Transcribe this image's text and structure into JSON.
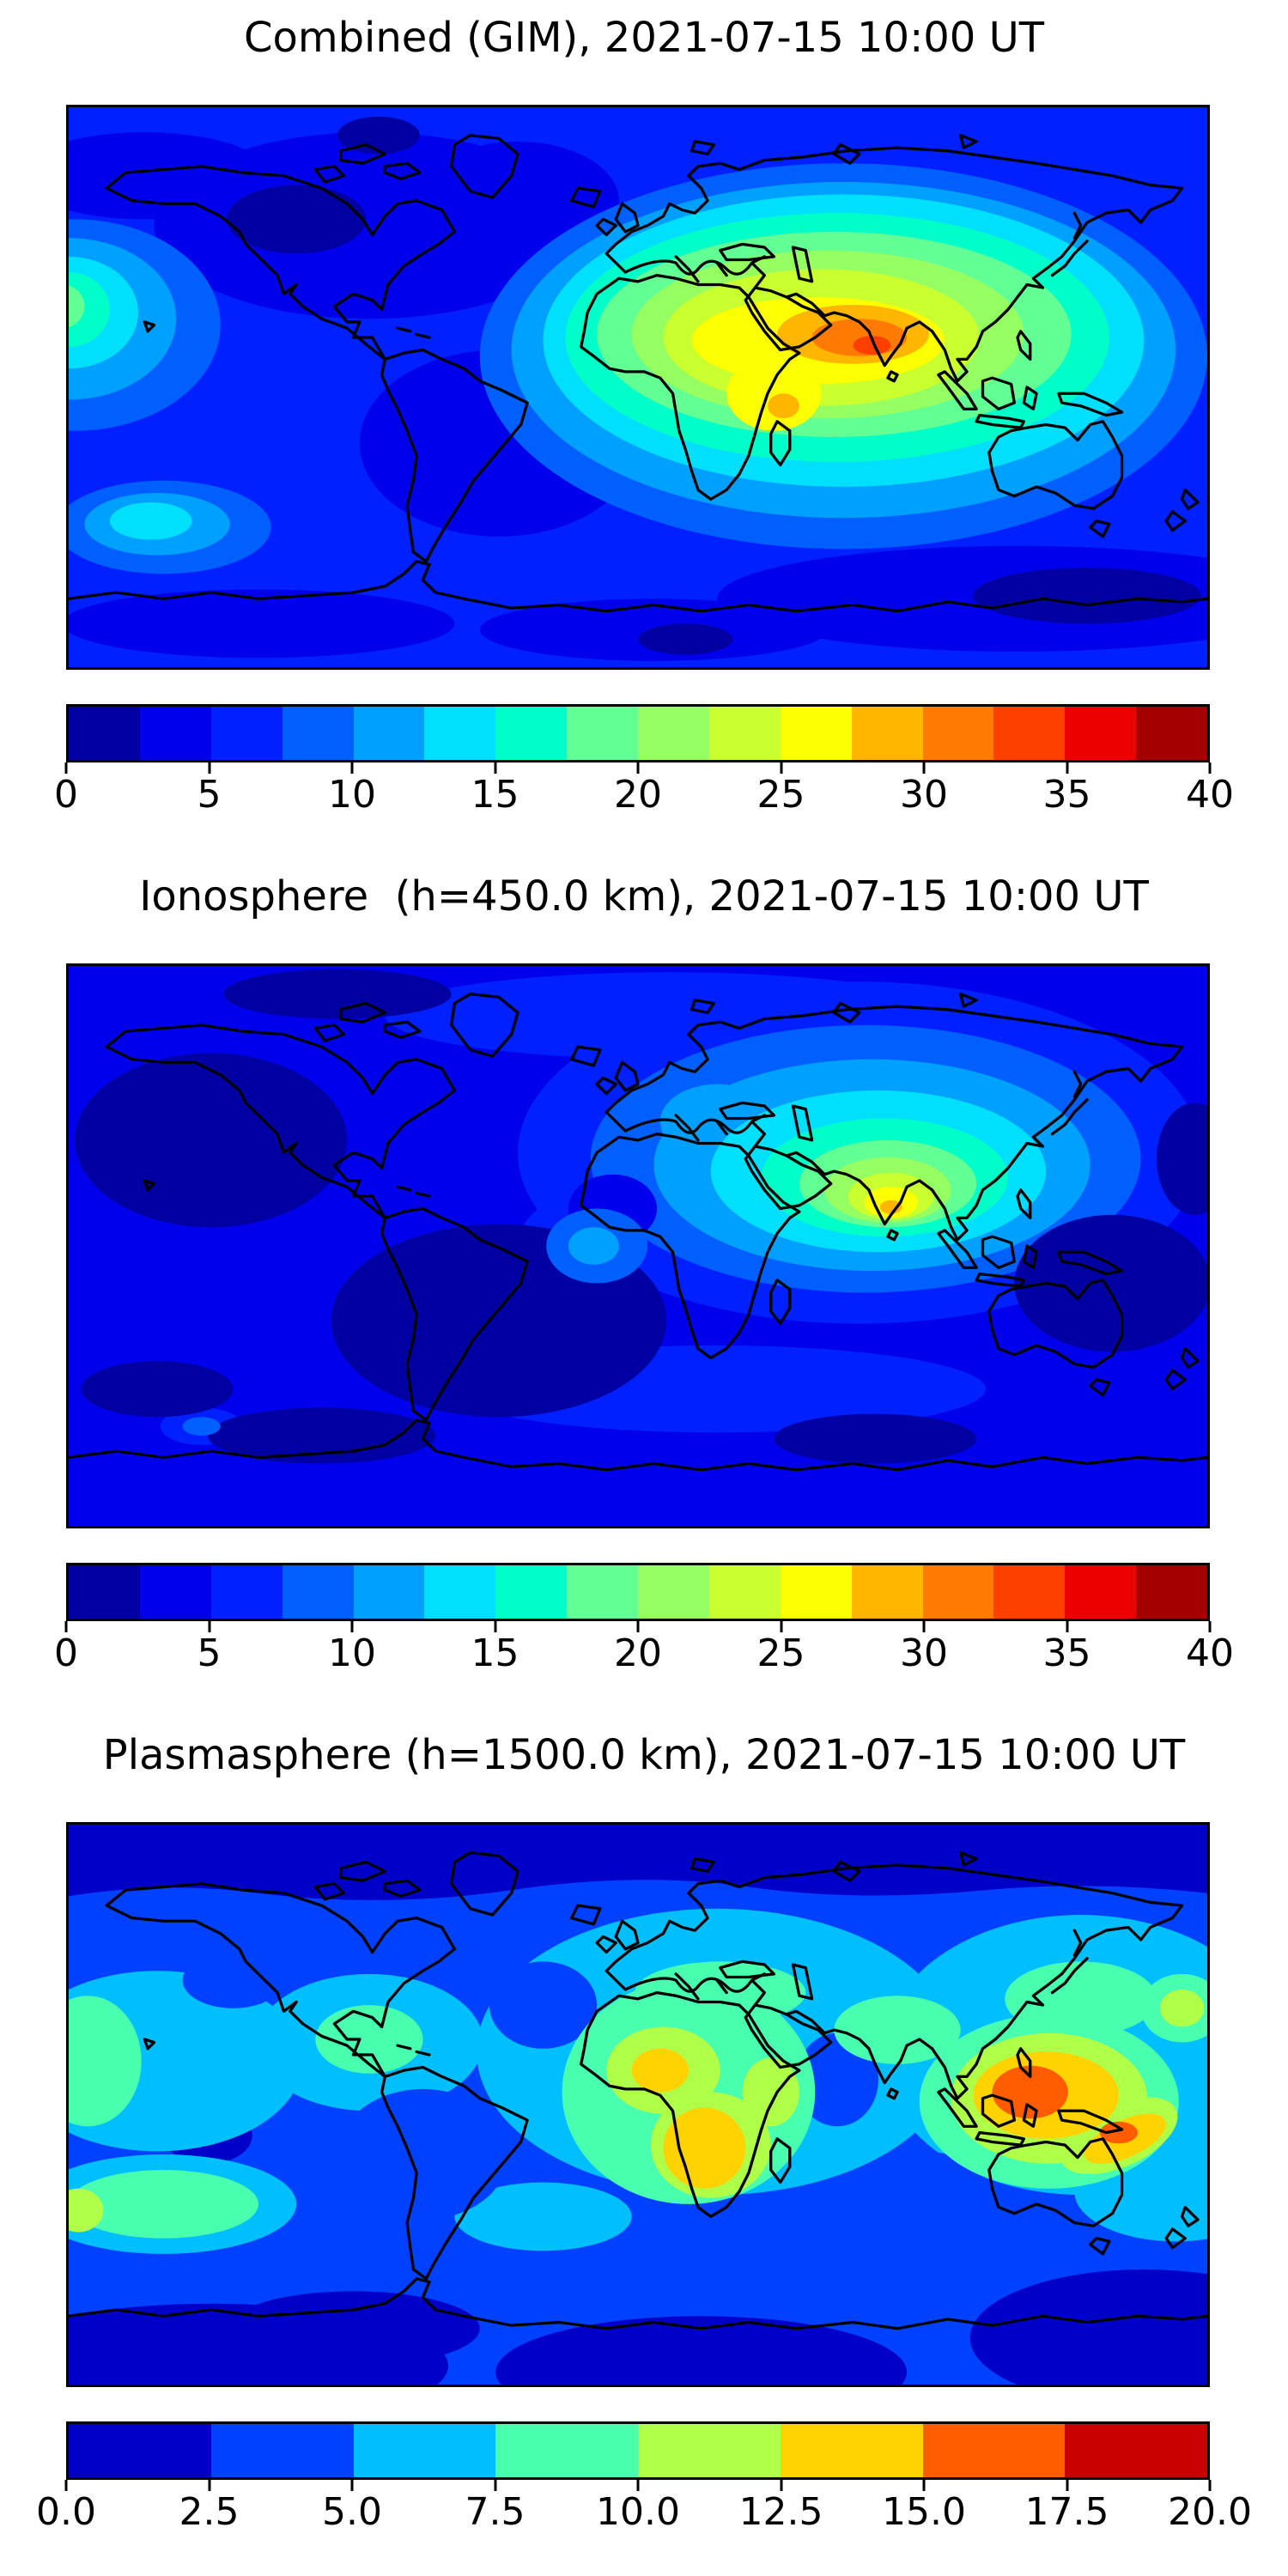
{
  "figure": {
    "background": "#ffffff",
    "frame_color": "#000000",
    "coastline_color": "#000000"
  },
  "panels": [
    {
      "title": "Combined (GIM), 2021-07-15 10:00 UT",
      "colorbar": {
        "min": 0,
        "max": 40,
        "ticks": [
          "0",
          "5",
          "10",
          "15",
          "20",
          "25",
          "30",
          "35",
          "40"
        ],
        "n_segments": 16,
        "palette": [
          "#0000A3",
          "#0000EC",
          "#0020FF",
          "#0060FF",
          "#00A0FF",
          "#00E0FC",
          "#00FFC8",
          "#62FF95",
          "#95FF62",
          "#C9FF2E",
          "#FCFF00",
          "#FFB600",
          "#FF7A00",
          "#FF3F00",
          "#EC0000",
          "#A40000"
        ]
      }
    },
    {
      "title": "Ionosphere  (h=450.0 km), 2021-07-15 10:00 UT",
      "colorbar": {
        "min": 0,
        "max": 40,
        "ticks": [
          "0",
          "5",
          "10",
          "15",
          "20",
          "25",
          "30",
          "35",
          "40"
        ],
        "n_segments": 16,
        "palette": [
          "#0000A3",
          "#0000EC",
          "#0020FF",
          "#0060FF",
          "#00A0FF",
          "#00E0FC",
          "#00FFC8",
          "#62FF95",
          "#95FF62",
          "#C9FF2E",
          "#FCFF00",
          "#FFB600",
          "#FF7A00",
          "#FF3F00",
          "#EC0000",
          "#A40000"
        ]
      }
    },
    {
      "title": "Plasmasphere (h=1500.0 km), 2021-07-15 10:00 UT",
      "colorbar": {
        "min": 0,
        "max": 20,
        "ticks": [
          "0.0",
          "2.5",
          "5.0",
          "7.5",
          "10.0",
          "12.5",
          "15.0",
          "17.5",
          "20.0"
        ],
        "n_segments": 8,
        "palette": [
          "#0000C8",
          "#0040FF",
          "#00BFFF",
          "#48FFAF",
          "#AFFF48",
          "#FFD200",
          "#FF5C00",
          "#C80000"
        ]
      }
    }
  ],
  "chart_data": [
    {
      "type": "heatmap",
      "subtype": "filled-contour-world-map",
      "title": "Combined (GIM), 2021-07-15 10:00 UT",
      "projection": "equirectangular, lon -180..180, lat -90..90",
      "value_range": [
        0,
        40
      ],
      "contour_levels": [
        0,
        2.5,
        5,
        7.5,
        10,
        12.5,
        15,
        17.5,
        20,
        22.5,
        25,
        27.5,
        30,
        32.5,
        35,
        37.5,
        40
      ],
      "colorbar_ticks": [
        0,
        5,
        10,
        15,
        20,
        25,
        30,
        35,
        40
      ],
      "legend_position": "horizontal colorbar below map",
      "features": [
        {
          "region": "Arabian Sea / west India core (lon ~70E, lat ~13N)",
          "value": "35-37.5 (max, red-orange)"
        },
        {
          "region": "Arabia-India orange band (lon 40..95E, lat 8..22N)",
          "value": "30-35"
        },
        {
          "region": "Yellow band N Africa-Arabia-India incl. Madagascar lobe",
          "value": "25-30"
        },
        {
          "region": "Green/cyan halo Europe-Africa-SE Asia-Japan",
          "value": "12.5-25"
        },
        {
          "region": "West Pacific / left edge patch (lon ~-175, lat ~25N)",
          "value": "15-20"
        },
        {
          "region": "SE Pacific spot (lon ~-145, lat ~-45)",
          "value": "12.5-15"
        },
        {
          "region": "Mid/high latitude oceans",
          "value": "5-10"
        },
        {
          "region": "NW Canada minimum and far-south band",
          "value": "0-5"
        }
      ]
    },
    {
      "type": "heatmap",
      "subtype": "filled-contour-world-map",
      "title": "Ionosphere  (h=450.0 km), 2021-07-15 10:00 UT",
      "projection": "equirectangular, lon -180..180, lat -90..90",
      "value_range": [
        0,
        40
      ],
      "contour_levels": [
        0,
        2.5,
        5,
        7.5,
        10,
        12.5,
        15,
        17.5,
        20,
        22.5,
        25,
        27.5,
        30,
        32.5,
        35,
        37.5,
        40
      ],
      "colorbar_ticks": [
        0,
        5,
        10,
        15,
        20,
        25,
        30,
        35,
        40
      ],
      "legend_position": "horizontal colorbar below map",
      "features": [
        {
          "region": "South India tip core (lon ~78E, lat ~8N)",
          "value": "27.5-30 (max, small orange dot in yellow)"
        },
        {
          "region": "Arabia-India-SE Asia green/cyan system",
          "value": "12.5-25"
        },
        {
          "region": "Mediterranean / equatorial Atlantic light-blue patches",
          "value": "10-12.5"
        },
        {
          "region": "Background oceans",
          "value": "2.5-7.5"
        },
        {
          "region": "NE Pacific, S Atlantic/Brazil, W Pacific dark minima",
          "value": "0-2.5"
        }
      ]
    },
    {
      "type": "heatmap",
      "subtype": "filled-contour-world-map",
      "title": "Plasmasphere (h=1500.0 km), 2021-07-15 10:00 UT",
      "projection": "equirectangular, lon -180..180, lat -90..90",
      "value_range": [
        0,
        20
      ],
      "contour_levels": [
        0,
        2.5,
        5,
        7.5,
        10,
        12.5,
        15,
        17.5,
        20
      ],
      "colorbar_ticks": [
        0,
        2.5,
        5,
        7.5,
        10,
        12.5,
        15,
        17.5,
        20
      ],
      "legend_position": "horizontal colorbar below map",
      "features": [
        {
          "region": "Indonesia / Borneo-New Guinea core (lon ~125E, lat ~3S)",
          "value": "15-17.5 (max, orange)"
        },
        {
          "region": "Secondary orange spot east of New Guinea (lon ~152E)",
          "value": "15-17.5"
        },
        {
          "region": "Gold ring SE Asia + tongue toward Solomons",
          "value": "12.5-15"
        },
        {
          "region": "Central/Southern Africa gold-yellow lobes",
          "value": "10-15"
        },
        {
          "region": "Wavy equatorial green/cyan belt around globe",
          "value": "5-10"
        },
        {
          "region": "Yellow-green oval NW Pacific (lon ~172E, lat ~31N)",
          "value": "10-12.5"
        },
        {
          "region": "Mid-latitude blue background",
          "value": "2.5-5"
        },
        {
          "region": "Polar caps / far-south navy regions",
          "value": "0-2.5"
        }
      ]
    }
  ]
}
